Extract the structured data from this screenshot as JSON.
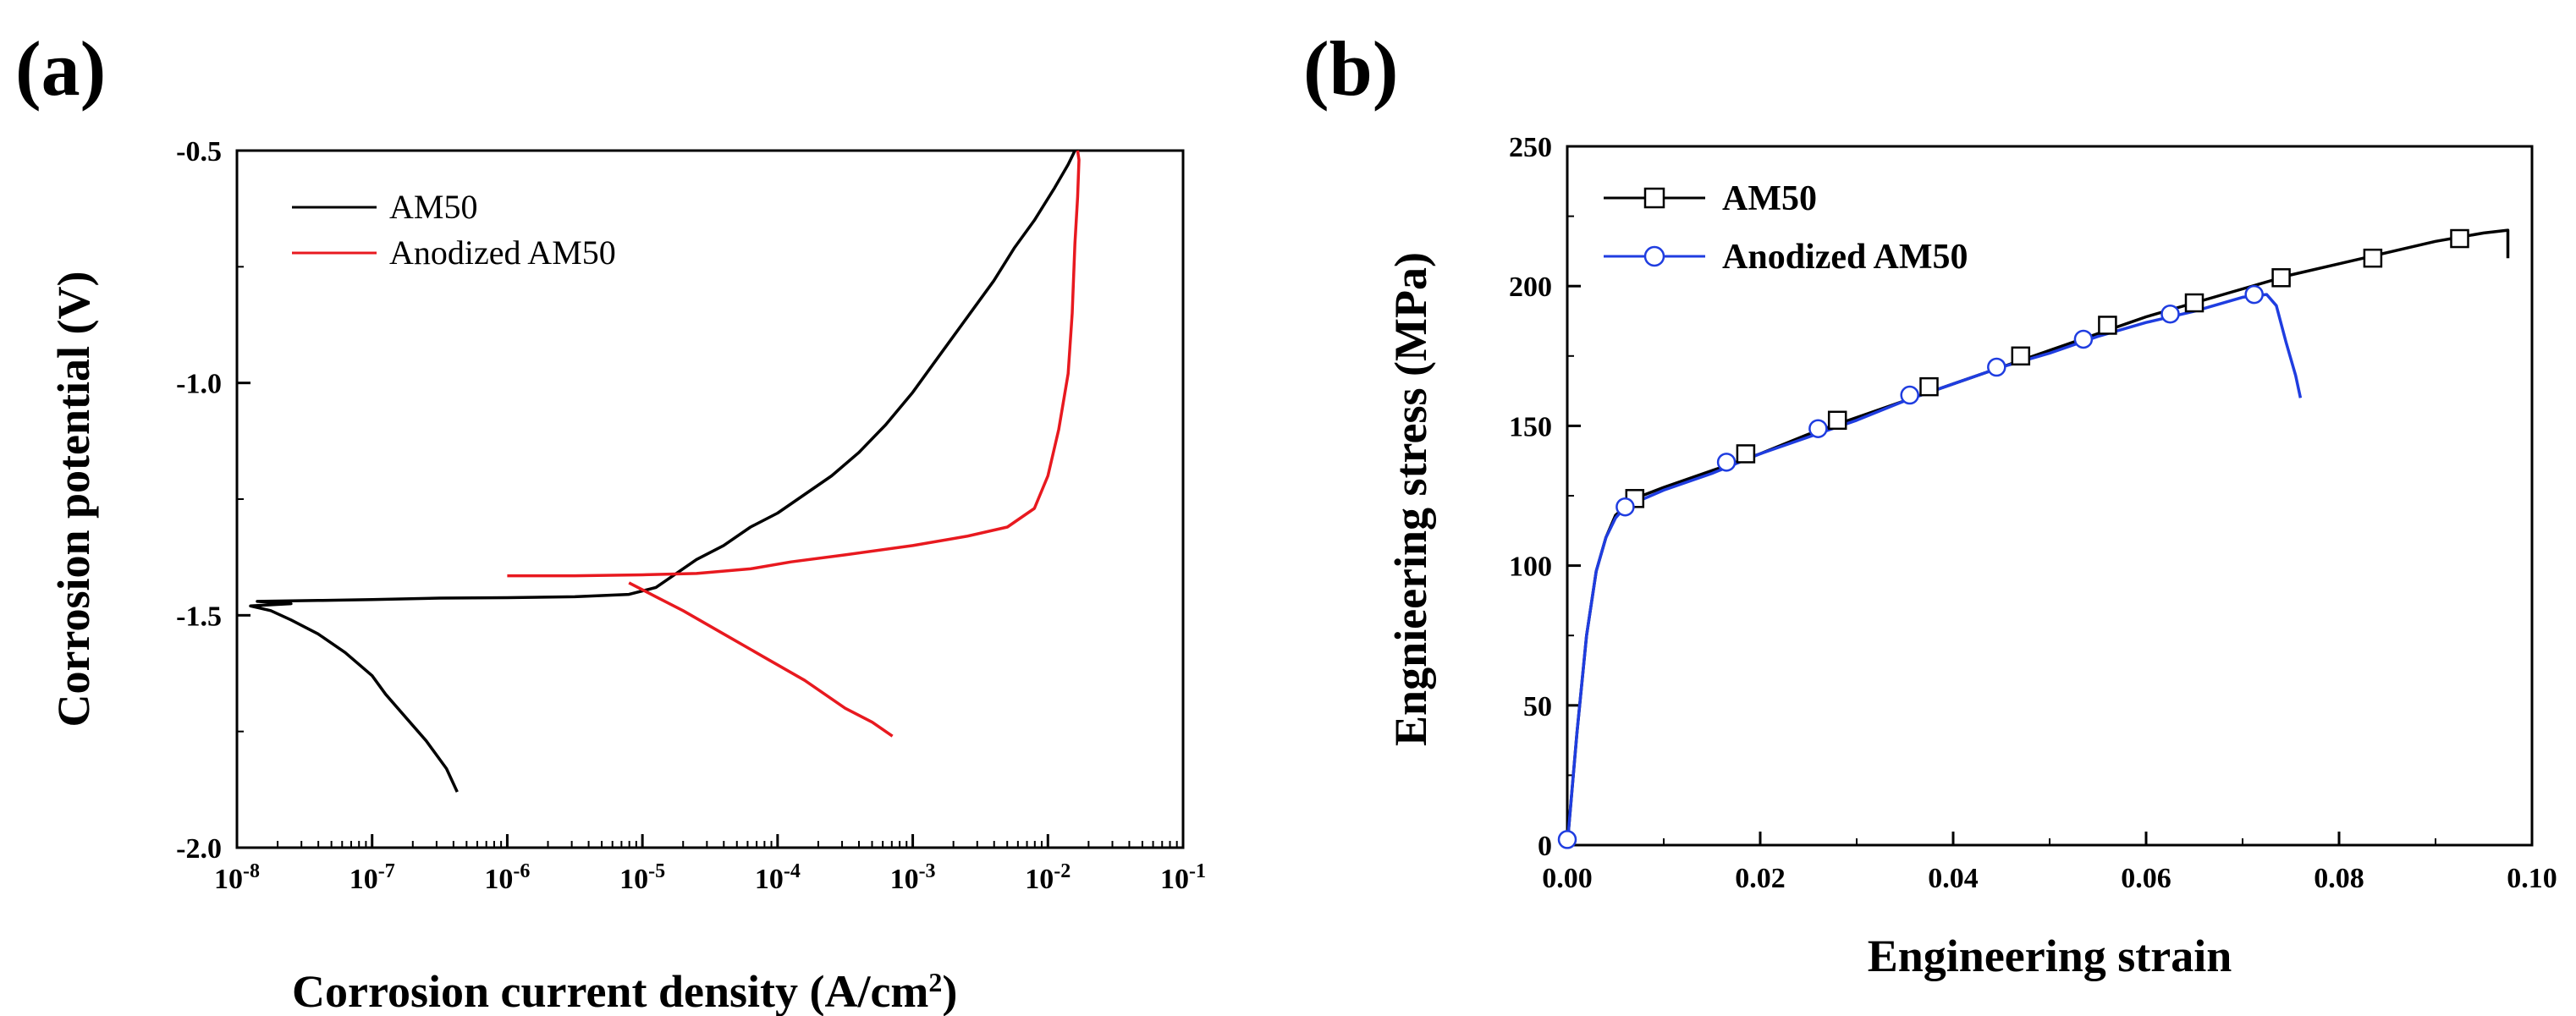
{
  "chart_data": [
    {
      "panel": "(a)",
      "type": "line",
      "xscale": "log",
      "xlabel": "Corrosion current density (A/cm",
      "xlabel_sup": "2",
      "xlabel_end": ")",
      "ylabel": "Corrosion potential (V)",
      "xlim_exp": [
        -8,
        -1
      ],
      "ylim": [
        -2.0,
        -0.5
      ],
      "xtick_base": "10",
      "xtick_exponents": [
        "-8",
        "-7",
        "-6",
        "-5",
        "-4",
        "-3",
        "-2",
        "-1"
      ],
      "yticks": [
        "-2.0",
        "-1.5",
        "-1.0",
        "-0.5"
      ],
      "legend_position": "top-left",
      "series": [
        {
          "name": "AM50",
          "color": "#000000",
          "points": [
            [
              -6.37,
              -1.88
            ],
            [
              -6.45,
              -1.83
            ],
            [
              -6.6,
              -1.77
            ],
            [
              -6.75,
              -1.72
            ],
            [
              -6.9,
              -1.67
            ],
            [
              -7.0,
              -1.63
            ],
            [
              -7.2,
              -1.58
            ],
            [
              -7.4,
              -1.54
            ],
            [
              -7.6,
              -1.51
            ],
            [
              -7.75,
              -1.49
            ],
            [
              -7.9,
              -1.48
            ],
            [
              -7.6,
              -1.475
            ],
            [
              -7.85,
              -1.47
            ],
            [
              -7.4,
              -1.468
            ],
            [
              -7.0,
              -1.466
            ],
            [
              -6.5,
              -1.463
            ],
            [
              -6.0,
              -1.462
            ],
            [
              -5.5,
              -1.46
            ],
            [
              -5.1,
              -1.455
            ],
            [
              -4.9,
              -1.44
            ],
            [
              -4.75,
              -1.41
            ],
            [
              -4.6,
              -1.38
            ],
            [
              -4.4,
              -1.35
            ],
            [
              -4.2,
              -1.31
            ],
            [
              -4.0,
              -1.28
            ],
            [
              -3.8,
              -1.24
            ],
            [
              -3.6,
              -1.2
            ],
            [
              -3.4,
              -1.15
            ],
            [
              -3.2,
              -1.09
            ],
            [
              -3.0,
              -1.02
            ],
            [
              -2.85,
              -0.96
            ],
            [
              -2.7,
              -0.9
            ],
            [
              -2.55,
              -0.84
            ],
            [
              -2.4,
              -0.78
            ],
            [
              -2.25,
              -0.71
            ],
            [
              -2.1,
              -0.65
            ],
            [
              -1.95,
              -0.58
            ],
            [
              -1.85,
              -0.53
            ],
            [
              -1.8,
              -0.5
            ]
          ]
        },
        {
          "name": "Anodized AM50",
          "color": "#e8191f",
          "points": [
            [
              -6.0,
              -1.415
            ],
            [
              -5.5,
              -1.415
            ],
            [
              -5.0,
              -1.413
            ],
            [
              -4.6,
              -1.41
            ],
            [
              -4.2,
              -1.4
            ],
            [
              -3.9,
              -1.385
            ],
            [
              -3.5,
              -1.37
            ],
            [
              -3.0,
              -1.35
            ],
            [
              -2.6,
              -1.33
            ],
            [
              -2.3,
              -1.31
            ],
            [
              -2.1,
              -1.27
            ],
            [
              -2.0,
              -1.2
            ],
            [
              -1.92,
              -1.1
            ],
            [
              -1.85,
              -0.98
            ],
            [
              -1.82,
              -0.85
            ],
            [
              -1.8,
              -0.7
            ],
            [
              -1.78,
              -0.6
            ],
            [
              -1.77,
              -0.52
            ],
            [
              -1.78,
              -0.5
            ]
          ],
          "branch2": [
            [
              -5.1,
              -1.43
            ],
            [
              -4.9,
              -1.46
            ],
            [
              -4.7,
              -1.49
            ],
            [
              -4.4,
              -1.54
            ],
            [
              -4.1,
              -1.59
            ],
            [
              -3.8,
              -1.64
            ],
            [
              -3.5,
              -1.7
            ],
            [
              -3.3,
              -1.73
            ],
            [
              -3.15,
              -1.76
            ]
          ]
        }
      ]
    },
    {
      "panel": "(b)",
      "type": "line",
      "xlabel": "Engineering strain",
      "ylabel": "Engnieering stress (MPa)",
      "xlim": [
        0.0,
        0.1
      ],
      "ylim": [
        0,
        250
      ],
      "xticks": [
        "0.00",
        "0.02",
        "0.04",
        "0.06",
        "0.08",
        "0.10"
      ],
      "yticks": [
        "0",
        "50",
        "100",
        "150",
        "200",
        "250"
      ],
      "legend_position": "top-left",
      "series": [
        {
          "name": "AM50",
          "color": "#000000",
          "marker": "square",
          "points": [
            [
              0,
              0
            ],
            [
              0.001,
              40
            ],
            [
              0.002,
              75
            ],
            [
              0.003,
              98
            ],
            [
              0.004,
              110
            ],
            [
              0.005,
              118
            ],
            [
              0.006,
              121
            ],
            [
              0.007,
              124
            ],
            [
              0.01,
              128
            ],
            [
              0.015,
              134
            ],
            [
              0.02,
              140
            ],
            [
              0.025,
              147
            ],
            [
              0.03,
              153
            ],
            [
              0.035,
              159
            ],
            [
              0.04,
              165
            ],
            [
              0.045,
              171
            ],
            [
              0.05,
              177
            ],
            [
              0.055,
              183
            ],
            [
              0.06,
              189
            ],
            [
              0.065,
              194
            ],
            [
              0.07,
              199
            ],
            [
              0.075,
              204
            ],
            [
              0.08,
              208
            ],
            [
              0.085,
              212
            ],
            [
              0.09,
              216
            ],
            [
              0.095,
              219
            ],
            [
              0.0975,
              220
            ],
            [
              0.0975,
              210
            ]
          ],
          "markers": [
            [
              0.007,
              124
            ],
            [
              0.0185,
              140
            ],
            [
              0.028,
              152
            ],
            [
              0.0375,
              164
            ],
            [
              0.047,
              175
            ],
            [
              0.056,
              186
            ],
            [
              0.065,
              194
            ],
            [
              0.074,
              203
            ],
            [
              0.0835,
              210
            ],
            [
              0.0925,
              217
            ]
          ]
        },
        {
          "name": "Anodized AM50",
          "color": "#1f3de0",
          "marker": "circle",
          "points": [
            [
              0,
              0
            ],
            [
              0.001,
              40
            ],
            [
              0.002,
              75
            ],
            [
              0.003,
              98
            ],
            [
              0.004,
              110
            ],
            [
              0.005,
              117
            ],
            [
              0.006,
              121
            ],
            [
              0.01,
              127
            ],
            [
              0.015,
              133
            ],
            [
              0.02,
              140
            ],
            [
              0.025,
              146
            ],
            [
              0.03,
              152
            ],
            [
              0.035,
              159
            ],
            [
              0.04,
              165
            ],
            [
              0.045,
              171
            ],
            [
              0.05,
              176
            ],
            [
              0.055,
              182
            ],
            [
              0.06,
              187
            ],
            [
              0.065,
              191
            ],
            [
              0.07,
              196
            ],
            [
              0.0725,
              197
            ],
            [
              0.0735,
              193
            ],
            [
              0.0745,
              180
            ],
            [
              0.0755,
              168
            ],
            [
              0.076,
              160
            ]
          ],
          "markers": [
            [
              0.0,
              2
            ],
            [
              0.006,
              121
            ],
            [
              0.0165,
              137
            ],
            [
              0.026,
              149
            ],
            [
              0.0355,
              161
            ],
            [
              0.0445,
              171
            ],
            [
              0.0535,
              181
            ],
            [
              0.0625,
              190
            ],
            [
              0.0712,
              197
            ]
          ]
        }
      ]
    }
  ]
}
